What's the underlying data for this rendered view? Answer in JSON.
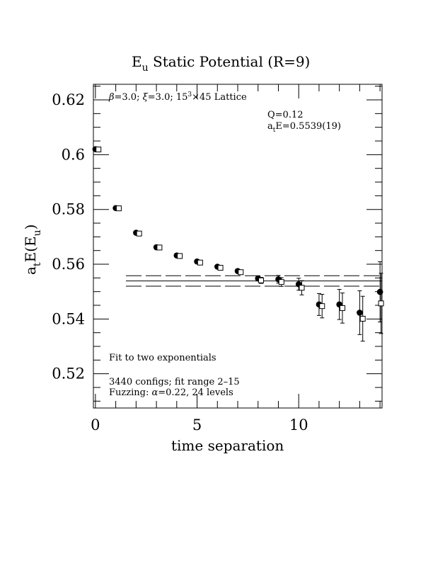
{
  "chart_data": {
    "type": "scatter",
    "title_main": "E",
    "title_sub": "u",
    "title_rest": " Static Potential (R=9)",
    "ylabel": {
      "a": "a",
      "t": "t",
      "E": "E(E",
      "u": "u",
      "close": ")"
    },
    "xlabel": "time separation",
    "xlim": [
      -0.1,
      14.1
    ],
    "ylim": [
      0.5075,
      0.6257
    ],
    "xticks": [
      0,
      5,
      10
    ],
    "xtick_labels": [
      "0",
      "5",
      "10"
    ],
    "yticks": [
      0.52,
      0.54,
      0.56,
      0.58,
      0.6,
      0.62
    ],
    "ytick_labels": [
      "0.52",
      "0.54",
      "0.56",
      "0.58",
      "0.6",
      "0.62"
    ],
    "grid": false,
    "annotations": {
      "lattice_beta": "β",
      "lattice_mid": "=3.0; ",
      "lattice_xi": "ξ",
      "lattice_rest": "=3.0; 15",
      "lattice_sup": "3",
      "lattice_end": "×45 Lattice",
      "q": "Q=0.12",
      "fit_a": "a",
      "fit_t": "t",
      "fit_val": "E=0.5539(19)",
      "fit_method": "Fit to two exponentials",
      "configs": "3440 configs; fit range 2–15",
      "fuzzing_pre": "Fuzzing: ",
      "fuzzing_alpha": "α",
      "fuzzing_rest": "=0.22, 24 levels"
    },
    "fit": {
      "value": 0.5539,
      "error": 0.0019,
      "x_range": [
        1.5,
        14.1
      ]
    },
    "series": [
      {
        "marker": "filled-circle",
        "points": [
          {
            "x": 0,
            "y": 0.602,
            "err": 0.0002
          },
          {
            "x": 1,
            "y": 0.5805,
            "err": 0.0002
          },
          {
            "x": 2,
            "y": 0.5715,
            "err": 0.0003
          },
          {
            "x": 3,
            "y": 0.5662,
            "err": 0.0003
          },
          {
            "x": 4,
            "y": 0.5632,
            "err": 0.0004
          },
          {
            "x": 5,
            "y": 0.561,
            "err": 0.0005
          },
          {
            "x": 6,
            "y": 0.5591,
            "err": 0.0006
          },
          {
            "x": 7,
            "y": 0.5575,
            "err": 0.0007
          },
          {
            "x": 8,
            "y": 0.5548,
            "err": 0.0009
          },
          {
            "x": 9,
            "y": 0.5545,
            "err": 0.0014
          },
          {
            "x": 10,
            "y": 0.5527,
            "err": 0.0022
          },
          {
            "x": 11,
            "y": 0.5453,
            "err": 0.004
          },
          {
            "x": 12,
            "y": 0.5453,
            "err": 0.0055
          },
          {
            "x": 13,
            "y": 0.5423,
            "err": 0.008
          },
          {
            "x": 14,
            "y": 0.5499,
            "err": 0.011
          }
        ]
      },
      {
        "marker": "open-square",
        "points": [
          {
            "x": 0.15,
            "y": 0.6019,
            "err": 0.0002
          },
          {
            "x": 1.15,
            "y": 0.5804,
            "err": 0.0002
          },
          {
            "x": 2.15,
            "y": 0.5712,
            "err": 0.0003
          },
          {
            "x": 3.15,
            "y": 0.5661,
            "err": 0.0003
          },
          {
            "x": 4.15,
            "y": 0.563,
            "err": 0.0004
          },
          {
            "x": 5.15,
            "y": 0.5606,
            "err": 0.0005
          },
          {
            "x": 6.15,
            "y": 0.5587,
            "err": 0.0006
          },
          {
            "x": 7.15,
            "y": 0.5571,
            "err": 0.0007
          },
          {
            "x": 8.15,
            "y": 0.5541,
            "err": 0.0011
          },
          {
            "x": 9.15,
            "y": 0.5535,
            "err": 0.0016
          },
          {
            "x": 10.15,
            "y": 0.5514,
            "err": 0.0026
          },
          {
            "x": 11.15,
            "y": 0.5447,
            "err": 0.0043
          },
          {
            "x": 12.15,
            "y": 0.544,
            "err": 0.0055
          },
          {
            "x": 13.15,
            "y": 0.5401,
            "err": 0.0082
          },
          {
            "x": 14.05,
            "y": 0.5457,
            "err": 0.011
          }
        ]
      }
    ]
  }
}
